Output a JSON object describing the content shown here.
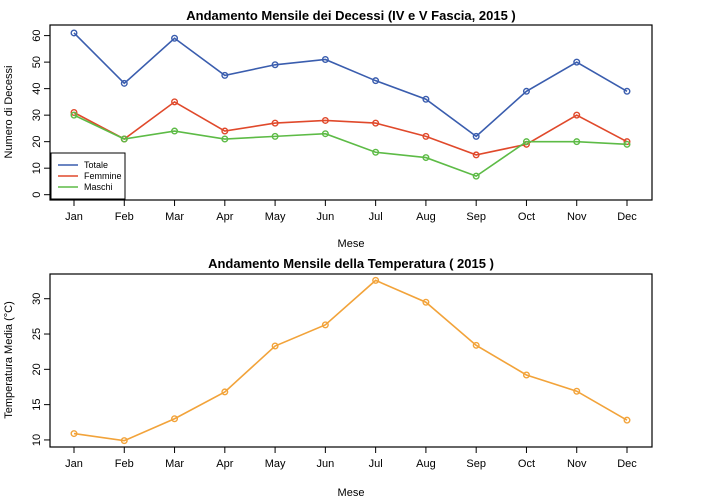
{
  "chart_data": [
    {
      "type": "line",
      "title": "Andamento Mensile dei Decessi (IV e V Fascia,  2015 )",
      "xlabel": "Mese",
      "ylabel": "Numero di Decessi",
      "categories": [
        "Jan",
        "Feb",
        "Mar",
        "Apr",
        "May",
        "Jun",
        "Jul",
        "Aug",
        "Sep",
        "Oct",
        "Nov",
        "Dec"
      ],
      "ylim": [
        -2,
        64
      ],
      "yticks": [
        0,
        10,
        20,
        30,
        40,
        50,
        60
      ],
      "legend_position": "bottom-left",
      "series": [
        {
          "name": "Totale",
          "color": "#3A5DAE",
          "values": [
            61,
            42,
            59,
            45,
            49,
            51,
            43,
            36,
            22,
            39,
            50,
            39
          ]
        },
        {
          "name": "Femmine",
          "color": "#E0492B",
          "values": [
            31,
            21,
            35,
            24,
            27,
            28,
            27,
            22,
            15,
            19,
            30,
            20
          ]
        },
        {
          "name": "Maschi",
          "color": "#5DBB46",
          "values": [
            30,
            21,
            24,
            21,
            22,
            23,
            16,
            14,
            7,
            20,
            20,
            19
          ]
        }
      ]
    },
    {
      "type": "line",
      "title": "Andamento Mensile della Temperatura ( 2015 )",
      "xlabel": "Mese",
      "ylabel": "Temperatura Media (°C)",
      "categories": [
        "Jan",
        "Feb",
        "Mar",
        "Apr",
        "May",
        "Jun",
        "Jul",
        "Aug",
        "Sep",
        "Oct",
        "Nov",
        "Dec"
      ],
      "ylim": [
        9.0,
        33.5
      ],
      "yticks": [
        10,
        15,
        20,
        25,
        30
      ],
      "series": [
        {
          "name": "Temperatura",
          "color": "#F2A33A",
          "values": [
            10.9,
            9.9,
            13.0,
            16.8,
            23.3,
            26.3,
            32.6,
            29.5,
            23.4,
            19.2,
            16.9,
            12.8
          ]
        }
      ]
    }
  ]
}
